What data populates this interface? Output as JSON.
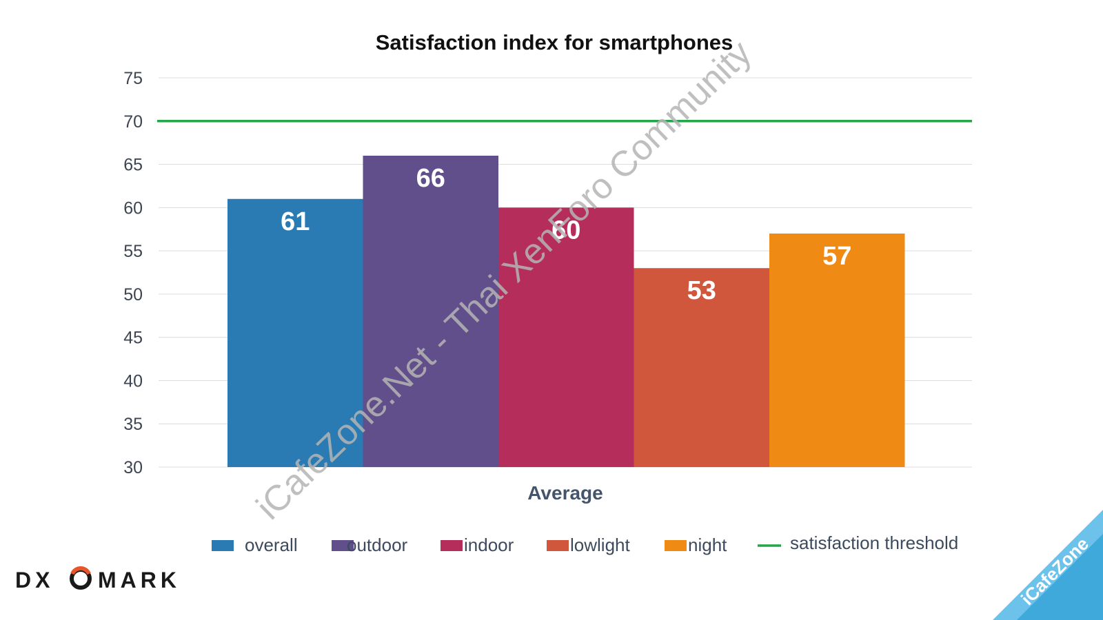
{
  "chart_data": {
    "type": "bar",
    "title": "Satisfaction index for smartphones",
    "categories": [
      "Average"
    ],
    "series": [
      {
        "name": "overall",
        "values": [
          61
        ],
        "color": "#2a7ab3"
      },
      {
        "name": "outdoor",
        "values": [
          66
        ],
        "color": "#604f8b"
      },
      {
        "name": "indoor",
        "values": [
          60
        ],
        "color": "#b42d5b"
      },
      {
        "name": "lowlight",
        "values": [
          53
        ],
        "color": "#d1573c"
      },
      {
        "name": "night",
        "values": [
          57
        ],
        "color": "#ef8a14"
      }
    ],
    "reference_line": {
      "name": "satisfaction threshold",
      "value": 70,
      "color": "#22a648"
    },
    "ylim": [
      30,
      75
    ],
    "yticks": [
      30,
      35,
      40,
      45,
      50,
      55,
      60,
      65,
      70,
      75
    ],
    "grid": true,
    "legend_position": "bottom",
    "data_labels": true
  },
  "watermark": "iCafeZone.Net - Thai XenForo Community",
  "logo": "DXOMARK",
  "corner_badge": "iCafeZone"
}
